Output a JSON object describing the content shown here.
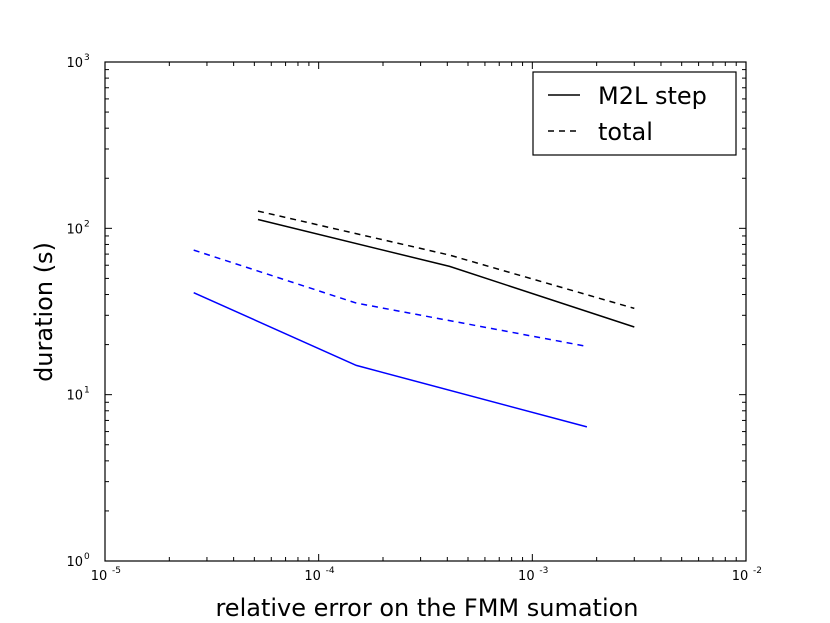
{
  "chart_data": {
    "type": "line",
    "title": "",
    "xlabel": "relative error on the FMM sumation",
    "ylabel": "duration (s)",
    "xscale": "log",
    "yscale": "log",
    "xlim": [
      1e-05,
      0.01
    ],
    "ylim": [
      1,
      1000
    ],
    "x_ticks": [
      {
        "base": "10",
        "exp": "-5"
      },
      {
        "base": "10",
        "exp": "-4"
      },
      {
        "base": "10",
        "exp": "-3"
      },
      {
        "base": "10",
        "exp": "-2"
      }
    ],
    "y_ticks": [
      {
        "base": "10",
        "exp": "0"
      },
      {
        "base": "10",
        "exp": "1"
      },
      {
        "base": "10",
        "exp": "2"
      },
      {
        "base": "10",
        "exp": "3"
      }
    ],
    "grid": false,
    "legend": {
      "position": "upper right",
      "entries": [
        {
          "label": "M2L step",
          "style": "solid",
          "color": "#000000"
        },
        {
          "label": "total",
          "style": "dashed",
          "color": "#000000"
        }
      ]
    },
    "series": [
      {
        "style": "solid",
        "color": "#000000",
        "x": [
          5.2e-05,
          0.00041,
          0.003
        ],
        "y": [
          113,
          59,
          25.5
        ]
      },
      {
        "style": "dashed",
        "color": "#000000",
        "x": [
          5.2e-05,
          0.00041,
          0.003
        ],
        "y": [
          127,
          69,
          33
        ]
      },
      {
        "style": "solid",
        "color": "#0000ff",
        "x": [
          2.6e-05,
          0.00015,
          0.0018
        ],
        "y": [
          41,
          15,
          6.4
        ]
      },
      {
        "style": "dashed",
        "color": "#0000ff",
        "x": [
          2.6e-05,
          0.00015,
          0.0018
        ],
        "y": [
          74,
          35.5,
          19.5
        ]
      }
    ]
  }
}
